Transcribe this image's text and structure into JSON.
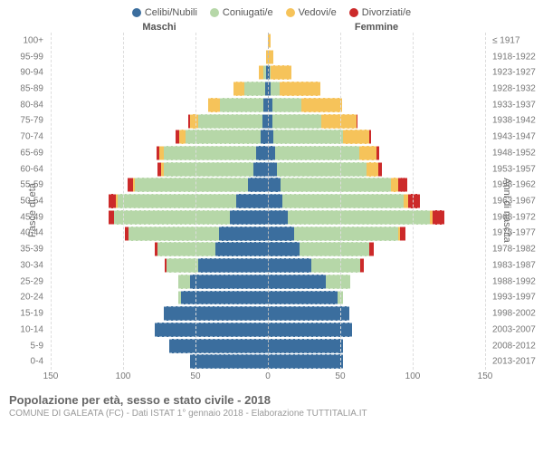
{
  "legend": [
    {
      "label": "Celibi/Nubili",
      "color": "#3b6e9e"
    },
    {
      "label": "Coniugati/e",
      "color": "#b6d7a8"
    },
    {
      "label": "Vedovi/e",
      "color": "#f6c35a"
    },
    {
      "label": "Divorziati/e",
      "color": "#cc2a2a"
    }
  ],
  "headers": {
    "male": "Maschi",
    "female": "Femmine"
  },
  "axis_labels": {
    "left": "Fasce di età",
    "right": "Anni di nascita"
  },
  "xlim": 150,
  "xticks_left": [
    150,
    100,
    50,
    0
  ],
  "xticks_right": [
    0,
    50,
    100,
    150
  ],
  "colors": {
    "celibi": "#3b6e9e",
    "coniugati": "#b6d7a8",
    "vedovi": "#f6c35a",
    "divorziati": "#cc2a2a",
    "grid": "#dddddd",
    "center": "#bbbbbb",
    "background": "#ffffff"
  },
  "rows": [
    {
      "age": "100+",
      "birth": "≤ 1917",
      "m": {
        "c": 0,
        "k": 0,
        "v": 0,
        "d": 0
      },
      "f": {
        "c": 0,
        "k": 0,
        "v": 2,
        "d": 0
      }
    },
    {
      "age": "95-99",
      "birth": "1918-1922",
      "m": {
        "c": 0,
        "k": 0,
        "v": 1,
        "d": 0
      },
      "f": {
        "c": 0,
        "k": 0,
        "v": 4,
        "d": 0
      }
    },
    {
      "age": "90-94",
      "birth": "1923-1927",
      "m": {
        "c": 1,
        "k": 2,
        "v": 3,
        "d": 0
      },
      "f": {
        "c": 1,
        "k": 1,
        "v": 14,
        "d": 0
      }
    },
    {
      "age": "85-89",
      "birth": "1928-1932",
      "m": {
        "c": 2,
        "k": 14,
        "v": 8,
        "d": 0
      },
      "f": {
        "c": 2,
        "k": 6,
        "v": 28,
        "d": 0
      }
    },
    {
      "age": "80-84",
      "birth": "1933-1937",
      "m": {
        "c": 3,
        "k": 30,
        "v": 8,
        "d": 0
      },
      "f": {
        "c": 3,
        "k": 20,
        "v": 28,
        "d": 0
      }
    },
    {
      "age": "75-79",
      "birth": "1938-1942",
      "m": {
        "c": 4,
        "k": 44,
        "v": 6,
        "d": 1
      },
      "f": {
        "c": 3,
        "k": 34,
        "v": 24,
        "d": 1
      }
    },
    {
      "age": "70-74",
      "birth": "1943-1947",
      "m": {
        "c": 5,
        "k": 52,
        "v": 4,
        "d": 3
      },
      "f": {
        "c": 4,
        "k": 48,
        "v": 18,
        "d": 1
      }
    },
    {
      "age": "65-69",
      "birth": "1948-1952",
      "m": {
        "c": 8,
        "k": 64,
        "v": 3,
        "d": 2
      },
      "f": {
        "c": 5,
        "k": 58,
        "v": 12,
        "d": 2
      }
    },
    {
      "age": "60-64",
      "birth": "1953-1957",
      "m": {
        "c": 10,
        "k": 62,
        "v": 2,
        "d": 2
      },
      "f": {
        "c": 6,
        "k": 62,
        "v": 8,
        "d": 3
      }
    },
    {
      "age": "55-59",
      "birth": "1958-1962",
      "m": {
        "c": 14,
        "k": 78,
        "v": 1,
        "d": 4
      },
      "f": {
        "c": 9,
        "k": 76,
        "v": 5,
        "d": 6
      }
    },
    {
      "age": "50-54",
      "birth": "1963-1967",
      "m": {
        "c": 22,
        "k": 82,
        "v": 1,
        "d": 5
      },
      "f": {
        "c": 10,
        "k": 84,
        "v": 3,
        "d": 8
      }
    },
    {
      "age": "45-49",
      "birth": "1968-1972",
      "m": {
        "c": 26,
        "k": 80,
        "v": 0,
        "d": 4
      },
      "f": {
        "c": 14,
        "k": 98,
        "v": 2,
        "d": 8
      }
    },
    {
      "age": "40-44",
      "birth": "1973-1977",
      "m": {
        "c": 34,
        "k": 62,
        "v": 0,
        "d": 3
      },
      "f": {
        "c": 18,
        "k": 72,
        "v": 1,
        "d": 4
      }
    },
    {
      "age": "35-39",
      "birth": "1978-1982",
      "m": {
        "c": 36,
        "k": 40,
        "v": 0,
        "d": 2
      },
      "f": {
        "c": 22,
        "k": 48,
        "v": 0,
        "d": 3
      }
    },
    {
      "age": "30-34",
      "birth": "1983-1987",
      "m": {
        "c": 48,
        "k": 22,
        "v": 0,
        "d": 1
      },
      "f": {
        "c": 30,
        "k": 34,
        "v": 0,
        "d": 2
      }
    },
    {
      "age": "25-29",
      "birth": "1988-1992",
      "m": {
        "c": 54,
        "k": 8,
        "v": 0,
        "d": 0
      },
      "f": {
        "c": 40,
        "k": 17,
        "v": 0,
        "d": 0
      }
    },
    {
      "age": "20-24",
      "birth": "1993-1997",
      "m": {
        "c": 60,
        "k": 2,
        "v": 0,
        "d": 0
      },
      "f": {
        "c": 48,
        "k": 4,
        "v": 0,
        "d": 0
      }
    },
    {
      "age": "15-19",
      "birth": "1998-2002",
      "m": {
        "c": 72,
        "k": 0,
        "v": 0,
        "d": 0
      },
      "f": {
        "c": 56,
        "k": 0,
        "v": 0,
        "d": 0
      }
    },
    {
      "age": "10-14",
      "birth": "2003-2007",
      "m": {
        "c": 78,
        "k": 0,
        "v": 0,
        "d": 0
      },
      "f": {
        "c": 58,
        "k": 0,
        "v": 0,
        "d": 0
      }
    },
    {
      "age": "5-9",
      "birth": "2008-2012",
      "m": {
        "c": 68,
        "k": 0,
        "v": 0,
        "d": 0
      },
      "f": {
        "c": 52,
        "k": 0,
        "v": 0,
        "d": 0
      }
    },
    {
      "age": "0-4",
      "birth": "2013-2017",
      "m": {
        "c": 54,
        "k": 0,
        "v": 0,
        "d": 0
      },
      "f": {
        "c": 52,
        "k": 0,
        "v": 0,
        "d": 0
      }
    }
  ],
  "footer": {
    "title": "Popolazione per età, sesso e stato civile - 2018",
    "sub": "COMUNE DI GALEATA (FC) - Dati ISTAT 1° gennaio 2018 - Elaborazione TUTTITALIA.IT"
  }
}
